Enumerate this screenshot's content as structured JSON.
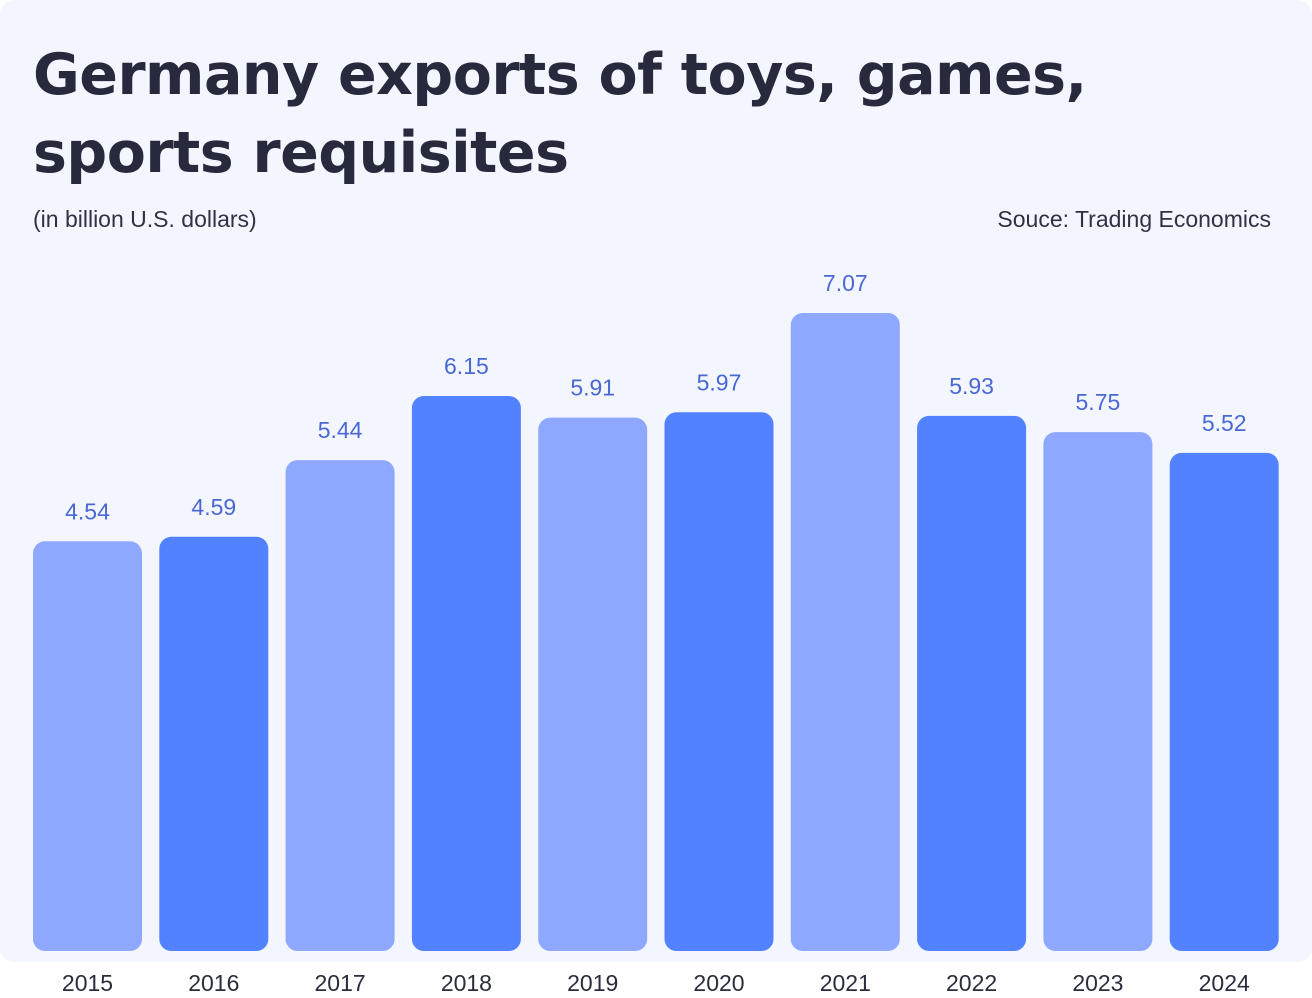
{
  "chart_data": {
    "type": "bar",
    "title": "Germany exports of toys, games, sports requisites",
    "subtitle": "(in billion U.S. dollars)",
    "source": "Souce: Trading Economics",
    "xlabel": "",
    "ylabel": "",
    "categories": [
      "2015",
      "2016",
      "2017",
      "2018",
      "2019",
      "2020",
      "2021",
      "2022",
      "2023",
      "2024"
    ],
    "values": [
      4.54,
      4.59,
      5.44,
      6.15,
      5.91,
      5.97,
      7.07,
      5.93,
      5.75,
      5.52
    ],
    "value_labels": [
      "4.54",
      "4.59",
      "5.44",
      "6.15",
      "5.91",
      "5.97",
      "7.07",
      "5.93",
      "5.75",
      "5.52"
    ],
    "ylim": [
      0,
      7.07
    ],
    "grid": false,
    "colors": {
      "light": "#8fa8ff",
      "dark": "#5282ff",
      "label": "#4a68d3"
    },
    "bar_color_pattern": [
      "light",
      "dark",
      "light",
      "dark",
      "light",
      "dark",
      "light",
      "dark",
      "light",
      "dark"
    ]
  }
}
